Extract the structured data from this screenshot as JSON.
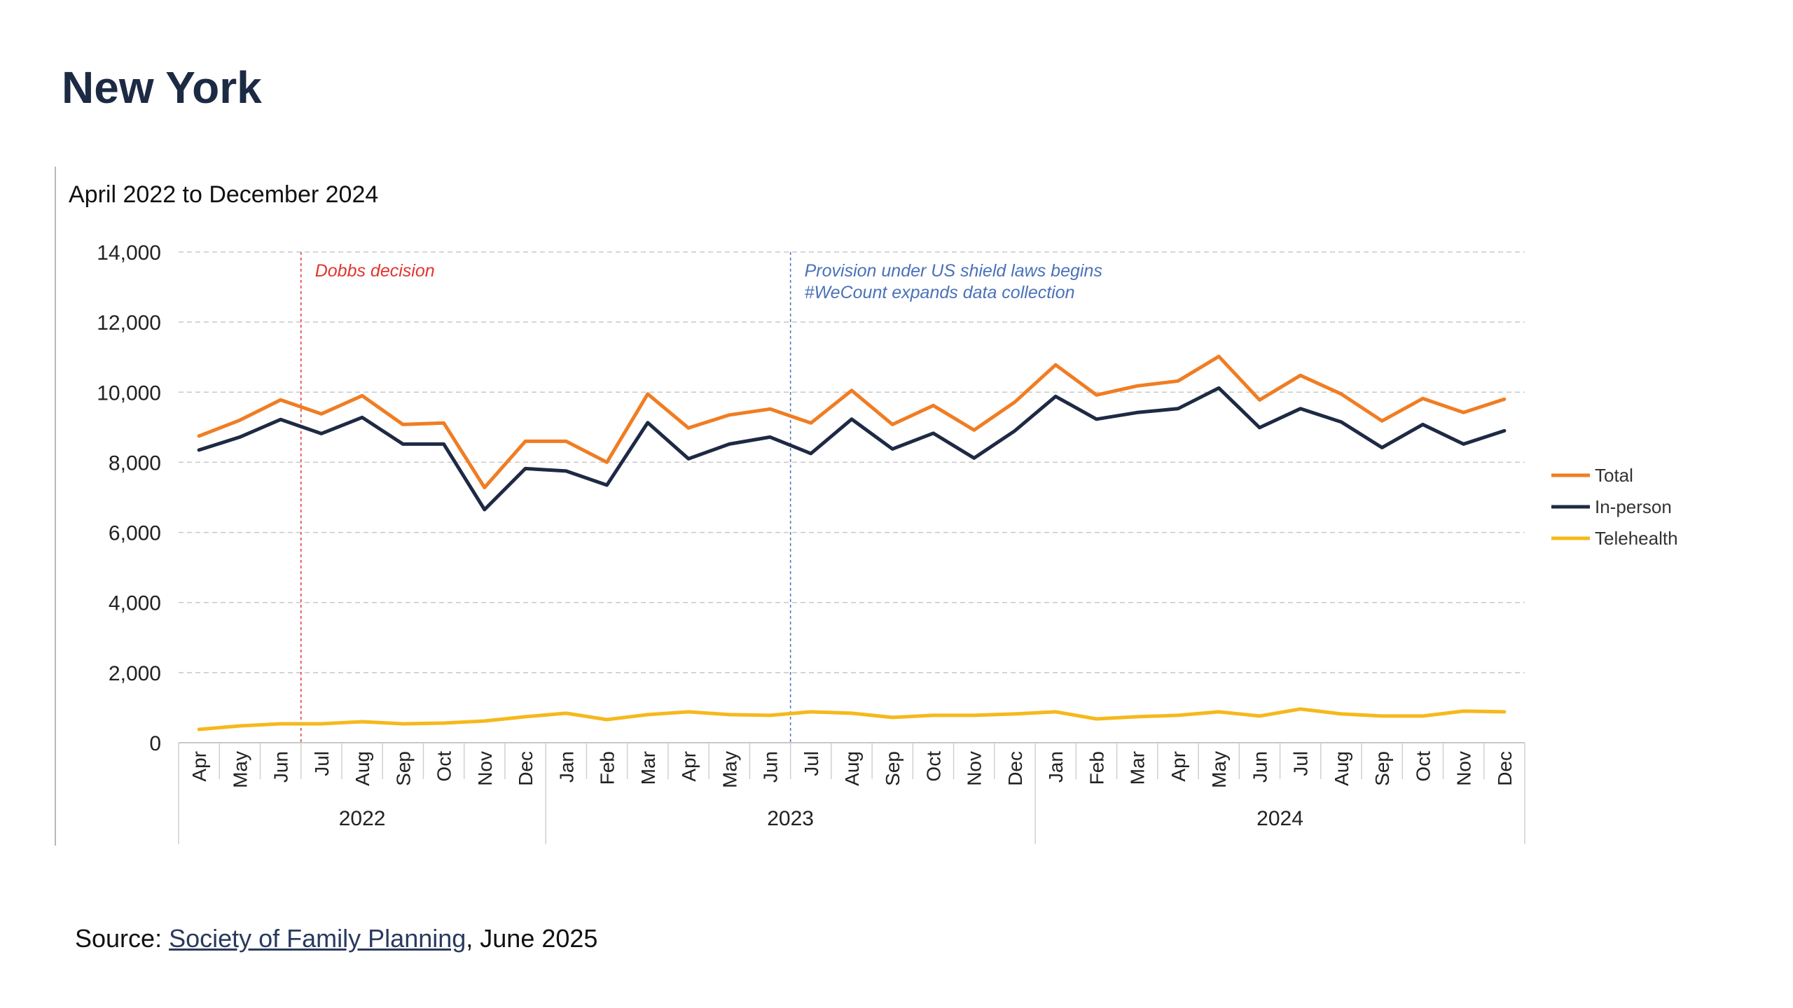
{
  "page": {
    "title": "New York",
    "source_prefix": "Source: ",
    "source_link": "Society of Family Planning",
    "source_suffix": ", June 2025"
  },
  "chart_data": {
    "type": "line",
    "subtitle": "April 2022 to December 2024",
    "ylim": [
      0,
      14000
    ],
    "yticks": [
      0,
      2000,
      4000,
      6000,
      8000,
      10000,
      12000,
      14000
    ],
    "ytick_labels": [
      "0",
      "2,000",
      "4,000",
      "6,000",
      "8,000",
      "10,000",
      "12,000",
      "14,000"
    ],
    "grid": true,
    "legend_position": "right",
    "categories": [
      "Apr",
      "May",
      "Jun",
      "Jul",
      "Aug",
      "Sep",
      "Oct",
      "Nov",
      "Dec",
      "Jan",
      "Feb",
      "Mar",
      "Apr",
      "May",
      "Jun",
      "Jul",
      "Aug",
      "Sep",
      "Oct",
      "Nov",
      "Dec",
      "Jan",
      "Feb",
      "Mar",
      "Apr",
      "May",
      "Jun",
      "Jul",
      "Aug",
      "Sep",
      "Oct",
      "Nov",
      "Dec"
    ],
    "year_groups": [
      {
        "label": "2022",
        "start": 0,
        "end": 8
      },
      {
        "label": "2023",
        "start": 9,
        "end": 20
      },
      {
        "label": "2024",
        "start": 21,
        "end": 32
      }
    ],
    "series": [
      {
        "name": "Total",
        "color": "#f07d23",
        "values": [
          8750,
          9200,
          9780,
          9380,
          9900,
          9080,
          9120,
          7280,
          8600,
          8600,
          8000,
          9950,
          8980,
          9350,
          9520,
          9120,
          10050,
          9080,
          9620,
          8920,
          9720,
          10780,
          9920,
          10180,
          10320,
          11020,
          9780,
          10480,
          9950,
          9180,
          9820,
          9420,
          9800
        ]
      },
      {
        "name": "In-person",
        "color": "#1e2a44",
        "values": [
          8350,
          8720,
          9220,
          8820,
          9280,
          8520,
          8520,
          6650,
          7820,
          7750,
          7350,
          9130,
          8100,
          8520,
          8720,
          8250,
          9230,
          8380,
          8830,
          8120,
          8900,
          9880,
          9230,
          9420,
          9530,
          10120,
          8990,
          9530,
          9150,
          8420,
          9080,
          8520,
          8900
        ]
      },
      {
        "name": "Telehealth",
        "color": "#f6b81c",
        "values": [
          380,
          480,
          540,
          540,
          600,
          540,
          560,
          620,
          740,
          840,
          660,
          800,
          880,
          800,
          780,
          880,
          840,
          720,
          780,
          780,
          820,
          880,
          680,
          740,
          780,
          880,
          760,
          960,
          820,
          760,
          760,
          900,
          880
        ]
      }
    ],
    "annotations": [
      {
        "after_index": 2,
        "color": "#e3342f",
        "lines": [
          "Dobbs decision"
        ]
      },
      {
        "after_index": 14,
        "color": "#4a72b8",
        "lines": [
          "Provision under US shield laws begins",
          "#WeCount expands data collection"
        ]
      }
    ]
  }
}
